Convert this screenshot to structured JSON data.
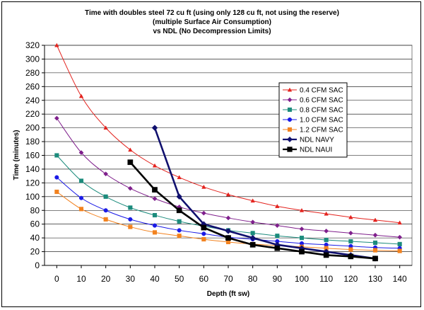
{
  "chart_data": {
    "type": "line",
    "title": [
      "Time with doubles steel 72 cu ft (using only 128 cu ft, not using the reserve)",
      "(multiple Surface Air Consumption)",
      "vs NDL (No Decompression Limits)"
    ],
    "xlabel": "Depth (ft sw)",
    "ylabel": "Time (minutes)",
    "x_ticks": [
      0,
      10,
      20,
      30,
      40,
      50,
      60,
      70,
      80,
      90,
      100,
      110,
      120,
      130,
      140
    ],
    "y_ticks": [
      0,
      20,
      40,
      60,
      80,
      100,
      120,
      140,
      160,
      180,
      200,
      220,
      240,
      260,
      280,
      300,
      320
    ],
    "xlim": [
      -5,
      145
    ],
    "ylim": [
      0,
      320
    ],
    "grid": "horizontal",
    "legend_position": "right",
    "series": [
      {
        "name": "0.4 CFM SAC",
        "color": "#e3231e",
        "marker": "triangle",
        "line_width": 1,
        "points": [
          [
            0,
            320
          ],
          [
            10,
            246
          ],
          [
            20,
            200
          ],
          [
            30,
            168
          ],
          [
            40,
            145
          ],
          [
            50,
            128
          ],
          [
            60,
            114
          ],
          [
            70,
            103
          ],
          [
            80,
            94
          ],
          [
            90,
            86
          ],
          [
            100,
            80
          ],
          [
            110,
            75
          ],
          [
            120,
            70
          ],
          [
            130,
            66
          ],
          [
            140,
            62
          ]
        ]
      },
      {
        "name": "0.6 CFM SAC",
        "color": "#7f1f8c",
        "marker": "diamond",
        "line_width": 1,
        "points": [
          [
            0,
            214
          ],
          [
            10,
            164
          ],
          [
            20,
            133
          ],
          [
            30,
            112
          ],
          [
            40,
            97
          ],
          [
            50,
            85
          ],
          [
            60,
            76
          ],
          [
            70,
            69
          ],
          [
            80,
            63
          ],
          [
            90,
            58
          ],
          [
            100,
            53
          ],
          [
            110,
            50
          ],
          [
            120,
            47
          ],
          [
            130,
            44
          ],
          [
            140,
            41
          ]
        ]
      },
      {
        "name": "0.8 CFM SAC",
        "color": "#1b8b7c",
        "marker": "square",
        "line_width": 1,
        "points": [
          [
            0,
            160
          ],
          [
            10,
            123
          ],
          [
            20,
            100
          ],
          [
            30,
            84
          ],
          [
            40,
            73
          ],
          [
            50,
            64
          ],
          [
            60,
            57
          ],
          [
            70,
            51
          ],
          [
            80,
            47
          ],
          [
            90,
            43
          ],
          [
            100,
            40
          ],
          [
            110,
            37
          ],
          [
            120,
            35
          ],
          [
            130,
            33
          ],
          [
            140,
            31
          ]
        ]
      },
      {
        "name": "1.0 CFM SAC",
        "color": "#1a1ae6",
        "marker": "circle",
        "line_width": 1,
        "points": [
          [
            0,
            128
          ],
          [
            10,
            98
          ],
          [
            20,
            80
          ],
          [
            30,
            67
          ],
          [
            40,
            58
          ],
          [
            50,
            51
          ],
          [
            60,
            46
          ],
          [
            70,
            41
          ],
          [
            80,
            38
          ],
          [
            90,
            35
          ],
          [
            100,
            32
          ],
          [
            110,
            30
          ],
          [
            120,
            28
          ],
          [
            130,
            26
          ],
          [
            140,
            25
          ]
        ]
      },
      {
        "name": "1.2 CFM SAC",
        "color": "#f2821f",
        "marker": "square",
        "line_width": 1,
        "points": [
          [
            0,
            107
          ],
          [
            10,
            82
          ],
          [
            20,
            67
          ],
          [
            30,
            56
          ],
          [
            40,
            48
          ],
          [
            50,
            43
          ],
          [
            60,
            38
          ],
          [
            70,
            34
          ],
          [
            80,
            31
          ],
          [
            90,
            29
          ],
          [
            100,
            27
          ],
          [
            110,
            25
          ],
          [
            120,
            23
          ],
          [
            130,
            22
          ],
          [
            140,
            21
          ]
        ]
      },
      {
        "name": "NDL NAVY",
        "color": "#10106e",
        "marker": "diamond",
        "line_width": 2.6,
        "points": [
          [
            40,
            200
          ],
          [
            50,
            100
          ],
          [
            60,
            60
          ],
          [
            70,
            50
          ],
          [
            80,
            40
          ],
          [
            90,
            30
          ],
          [
            100,
            25
          ],
          [
            110,
            20
          ],
          [
            120,
            15
          ],
          [
            130,
            10
          ]
        ]
      },
      {
        "name": "NDL NAUI",
        "color": "#000000",
        "marker": "square",
        "line_width": 2.6,
        "points": [
          [
            30,
            150
          ],
          [
            40,
            110
          ],
          [
            50,
            80
          ],
          [
            60,
            55
          ],
          [
            70,
            40
          ],
          [
            80,
            30
          ],
          [
            90,
            25
          ],
          [
            100,
            20
          ],
          [
            110,
            15
          ],
          [
            120,
            13
          ],
          [
            130,
            10
          ]
        ]
      }
    ]
  }
}
